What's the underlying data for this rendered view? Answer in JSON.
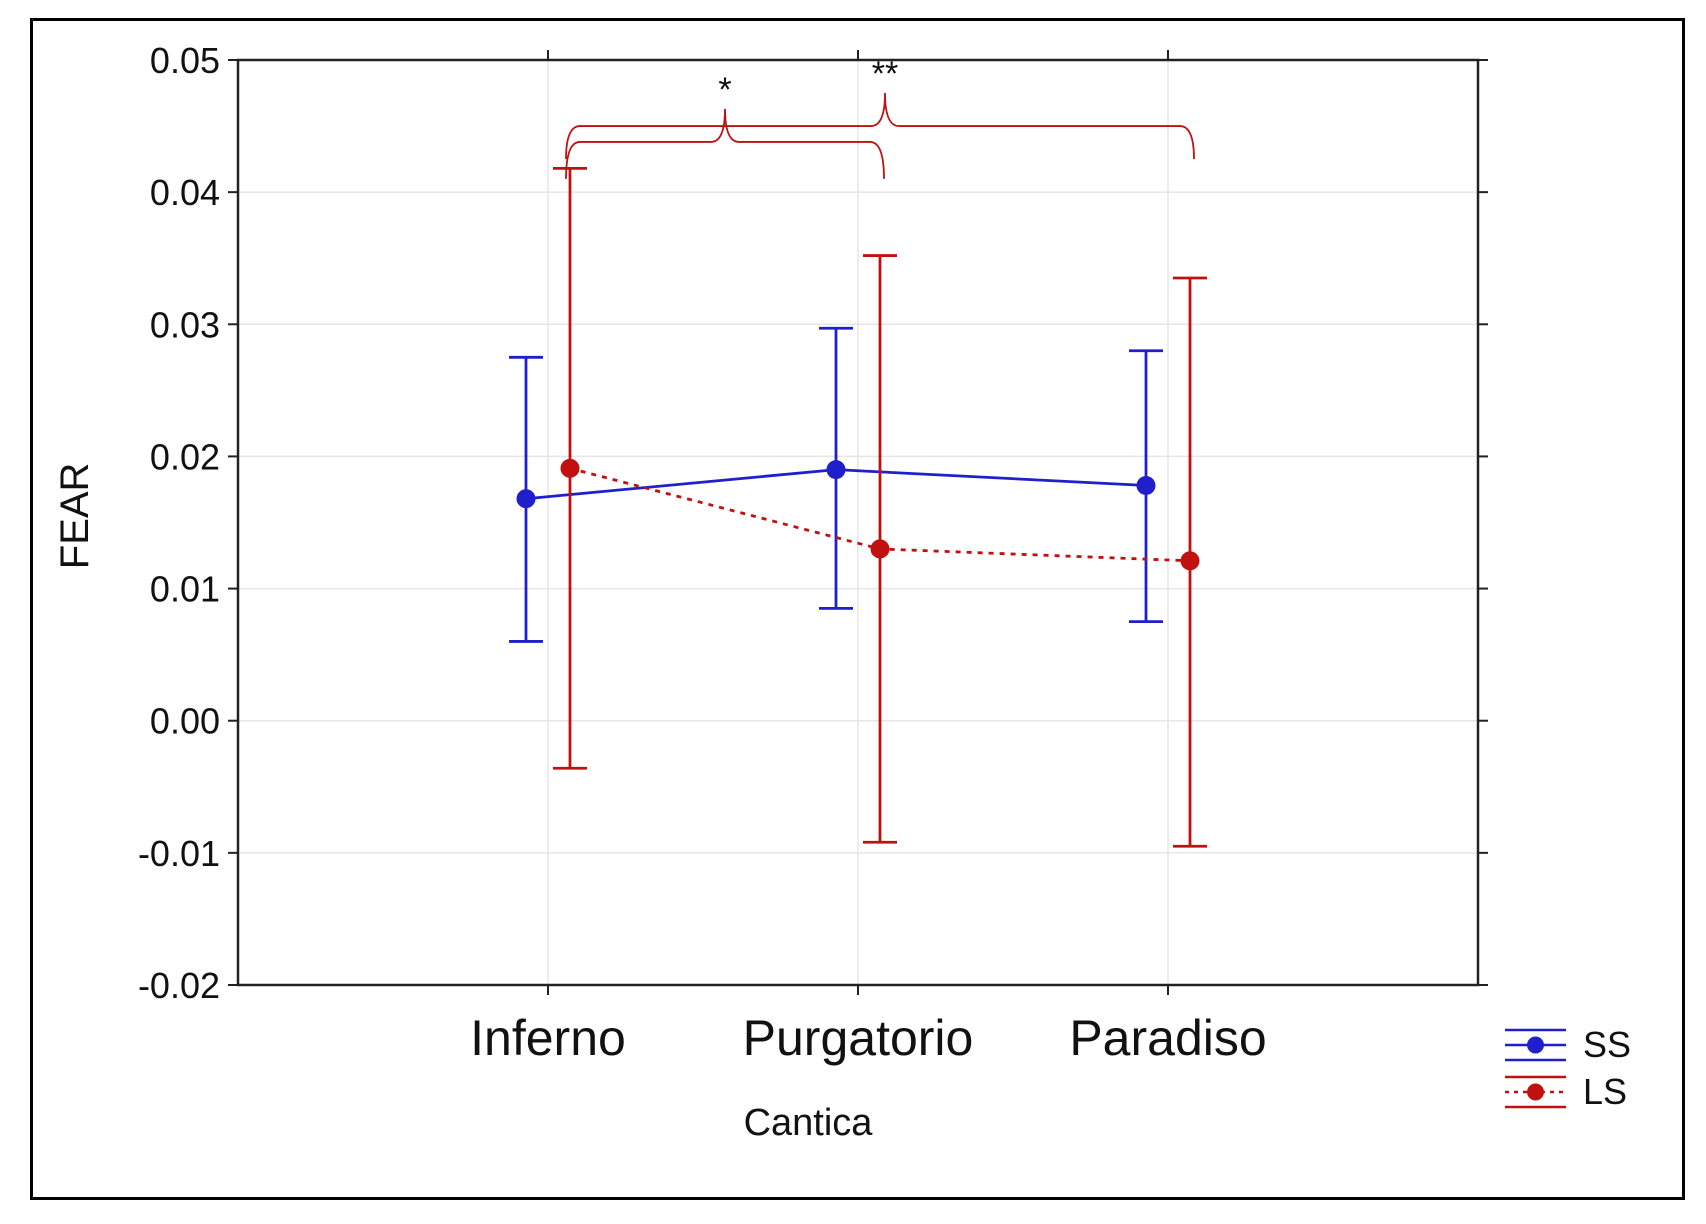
{
  "chart_data": {
    "type": "line",
    "title": "",
    "xlabel": "Cantica",
    "ylabel": "FEAR",
    "categories": [
      "Inferno",
      "Purgatorio",
      "Paradiso"
    ],
    "ylim": [
      -0.02,
      0.05
    ],
    "yticks": [
      "0.05",
      "0.04",
      "0.03",
      "0.02",
      "0.01",
      "0.00",
      "-0.01",
      "-0.02"
    ],
    "ytick_values": [
      0.05,
      0.04,
      0.03,
      0.02,
      0.01,
      0.0,
      -0.01,
      -0.02
    ],
    "grid": true,
    "legend_position": "outside bottom-right",
    "series": [
      {
        "name": "SS",
        "color": "#1f1fcc",
        "line_style": "solid",
        "values": [
          0.0168,
          0.019,
          0.0178
        ],
        "lower": [
          0.006,
          0.0085,
          0.0075
        ],
        "upper": [
          0.0275,
          0.0297,
          0.028
        ]
      },
      {
        "name": "LS",
        "color": "#c01010",
        "line_style": "dotted",
        "values": [
          0.0191,
          0.013,
          0.0121
        ],
        "lower": [
          -0.0036,
          -0.0092,
          -0.0095
        ],
        "upper": [
          0.0418,
          0.0352,
          0.0335
        ]
      }
    ],
    "annotations": [
      {
        "label": "*",
        "from": "Inferno",
        "to": "Purgatorio",
        "series": "LS"
      },
      {
        "label": "**",
        "from": "Inferno",
        "to": "Paradiso",
        "series": "LS"
      }
    ]
  }
}
